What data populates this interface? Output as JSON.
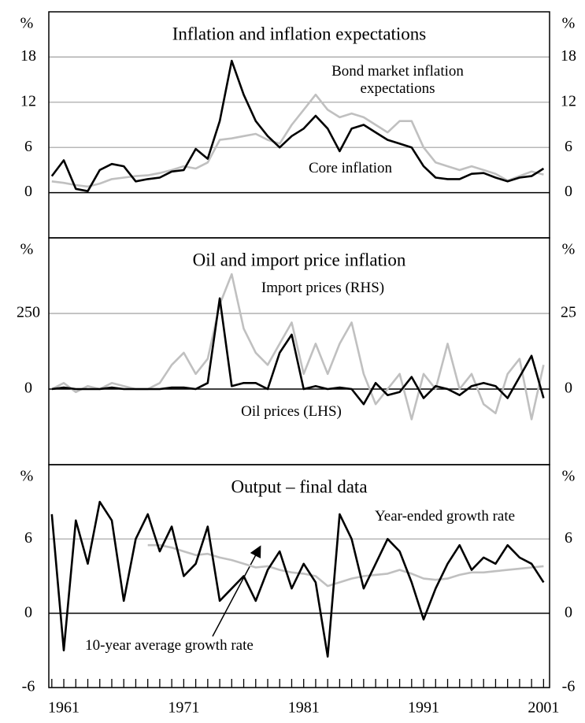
{
  "chart_data": [
    {
      "type": "line",
      "title": "Inflation and inflation expectations",
      "unit": "%",
      "x": [
        1960,
        1961,
        1962,
        1963,
        1964,
        1965,
        1966,
        1967,
        1968,
        1969,
        1970,
        1971,
        1972,
        1973,
        1974,
        1975,
        1976,
        1977,
        1978,
        1979,
        1980,
        1981,
        1982,
        1983,
        1984,
        1985,
        1986,
        1987,
        1988,
        1989,
        1990,
        1991,
        1992,
        1993,
        1994,
        1995,
        1996,
        1997,
        1998,
        1999,
        2000,
        2001
      ],
      "xlim": [
        1959.75,
        2001.5
      ],
      "ylim": [
        -6,
        24
      ],
      "yticks": [
        0,
        6,
        12,
        18
      ],
      "y2lim": [
        -6,
        24
      ],
      "y2ticks": [
        0,
        6,
        12,
        18
      ],
      "series": [
        {
          "name": "Bond market inflation expectations",
          "color": "#c0c0c0",
          "values": [
            1.5,
            1.3,
            1.0,
            0.8,
            1.2,
            1.8,
            2.0,
            2.2,
            2.3,
            2.6,
            3.0,
            3.5,
            3.2,
            4.0,
            7.0,
            7.2,
            7.5,
            7.8,
            7.0,
            6.5,
            9.0,
            11.0,
            13.0,
            11.0,
            10.0,
            10.5,
            10.0,
            9.0,
            8.0,
            9.5,
            9.5,
            6.0,
            4.0,
            3.5,
            3.0,
            3.5,
            3.0,
            2.5,
            1.6,
            2.2,
            2.8,
            2.4
          ]
        },
        {
          "name": "Core inflation",
          "color": "#000000",
          "values": [
            2.2,
            4.3,
            0.5,
            0.2,
            3.0,
            3.8,
            3.5,
            1.5,
            1.8,
            2.0,
            2.8,
            3.0,
            5.8,
            4.5,
            9.5,
            17.5,
            13.0,
            9.5,
            7.5,
            6.0,
            7.5,
            8.5,
            10.2,
            8.5,
            5.5,
            8.5,
            9.0,
            8.0,
            7.0,
            6.5,
            6.0,
            3.5,
            2.0,
            1.8,
            1.8,
            2.5,
            2.6,
            2.0,
            1.5,
            2.0,
            2.2,
            3.2
          ]
        }
      ]
    },
    {
      "type": "line",
      "title": "Oil and import price inflation",
      "unit": "%",
      "x": [
        1960,
        1961,
        1962,
        1963,
        1964,
        1965,
        1966,
        1967,
        1968,
        1969,
        1970,
        1971,
        1972,
        1973,
        1974,
        1975,
        1976,
        1977,
        1978,
        1979,
        1980,
        1981,
        1982,
        1983,
        1984,
        1985,
        1986,
        1987,
        1988,
        1989,
        1990,
        1991,
        1992,
        1993,
        1994,
        1995,
        1996,
        1997,
        1998,
        1999,
        2000,
        2001
      ],
      "xlim": [
        1959.75,
        2001.5
      ],
      "ylim": [
        -250,
        500
      ],
      "yticks": [
        0,
        250
      ],
      "y2lim": [
        -25,
        50
      ],
      "y2ticks": [
        0,
        25
      ],
      "series": [
        {
          "name": "Import prices (RHS)",
          "color": "#c0c0c0",
          "axis": "y2",
          "values": [
            0,
            2,
            -1,
            1,
            0,
            2,
            1,
            0,
            0,
            2,
            8,
            12,
            5,
            10,
            28,
            38,
            20,
            12,
            8,
            15,
            22,
            5,
            15,
            5,
            15,
            22,
            5,
            -5,
            0,
            5,
            -10,
            5,
            0,
            15,
            0,
            5,
            -5,
            -8,
            5,
            10,
            -10,
            8
          ]
        },
        {
          "name": "Oil prices (LHS)",
          "color": "#000000",
          "values": [
            0,
            5,
            0,
            0,
            0,
            5,
            0,
            0,
            0,
            0,
            5,
            5,
            0,
            20,
            300,
            10,
            20,
            20,
            0,
            120,
            180,
            0,
            10,
            0,
            5,
            0,
            -50,
            20,
            -20,
            -10,
            40,
            -30,
            10,
            0,
            -20,
            10,
            20,
            10,
            -30,
            40,
            110,
            -30
          ]
        }
      ]
    },
    {
      "type": "line",
      "title": "Output – final data",
      "unit": "%",
      "x": [
        1960,
        1961,
        1962,
        1963,
        1964,
        1965,
        1966,
        1967,
        1968,
        1969,
        1970,
        1971,
        1972,
        1973,
        1974,
        1975,
        1976,
        1977,
        1978,
        1979,
        1980,
        1981,
        1982,
        1983,
        1984,
        1985,
        1986,
        1987,
        1988,
        1989,
        1990,
        1991,
        1992,
        1993,
        1994,
        1995,
        1996,
        1997,
        1998,
        1999,
        2000,
        2001
      ],
      "xlim": [
        1959.75,
        2001.5
      ],
      "xticks": [
        1961,
        1971,
        1981,
        1991,
        2001
      ],
      "minor_xticks": [
        1960,
        1961,
        1962,
        1963,
        1964,
        1965,
        1966,
        1967,
        1968,
        1969,
        1970,
        1971,
        1972,
        1973,
        1974,
        1975,
        1976,
        1977,
        1978,
        1979,
        1980,
        1981,
        1982,
        1983,
        1984,
        1985,
        1986,
        1987,
        1988,
        1989,
        1990,
        1991,
        1992,
        1993,
        1994,
        1995,
        1996,
        1997,
        1998,
        1999,
        2000,
        2001
      ],
      "ylim": [
        -6,
        12
      ],
      "yticks": [
        -6,
        0,
        6
      ],
      "y2lim": [
        -6,
        12
      ],
      "y2ticks": [
        -6,
        0,
        6
      ],
      "series": [
        {
          "name": "10-year average growth rate",
          "color": "#c0c0c0",
          "values": [
            null,
            null,
            null,
            null,
            null,
            null,
            null,
            null,
            5.5,
            5.5,
            5.3,
            5.0,
            4.7,
            4.8,
            4.5,
            4.3,
            4.0,
            3.7,
            3.8,
            3.5,
            3.3,
            3.2,
            3.0,
            2.2,
            2.5,
            2.8,
            3.0,
            3.1,
            3.2,
            3.5,
            3.2,
            2.8,
            2.7,
            2.8,
            3.1,
            3.3,
            3.3,
            3.4,
            3.5,
            3.6,
            3.7,
            3.8
          ]
        },
        {
          "name": "Year-ended growth rate",
          "color": "#000000",
          "values": [
            8,
            -3,
            7.5,
            4,
            9,
            7.5,
            1,
            6,
            8,
            5,
            7,
            3,
            4,
            7,
            1,
            2,
            3,
            1,
            3.5,
            5,
            2,
            4,
            2.5,
            -3.5,
            8,
            6,
            2,
            4,
            6,
            5,
            2.5,
            -0.5,
            2,
            4,
            5.5,
            3.5,
            4.5,
            4,
            5.5,
            4.5,
            4,
            2.5
          ]
        }
      ]
    }
  ]
}
